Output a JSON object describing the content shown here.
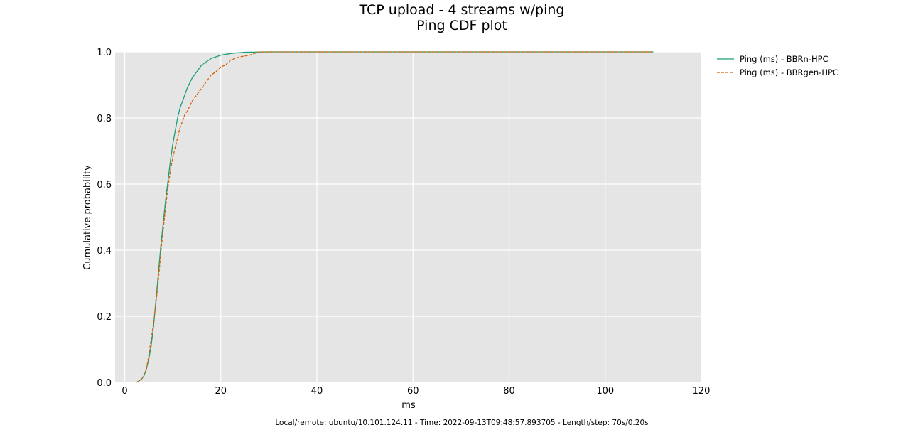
{
  "chart_data": {
    "type": "line",
    "title": "TCP upload - 4 streams w/ping",
    "subtitle": "Ping CDF plot",
    "xlabel": "ms",
    "ylabel": "Cumulative probability",
    "xlim": [
      -2,
      120
    ],
    "ylim": [
      0,
      1.0
    ],
    "xticks": [
      "0",
      "20",
      "40",
      "60",
      "80",
      "100",
      "120"
    ],
    "yticks": [
      "0.0",
      "0.2",
      "0.4",
      "0.6",
      "0.8",
      "1.0"
    ],
    "grid": true,
    "legend_position": "right-outside-top",
    "series": [
      {
        "name": "Ping (ms) - BBRn-HPC",
        "color": "#1b9e77",
        "dash": "solid",
        "points": [
          [
            2.5,
            0
          ],
          [
            3,
            0.005
          ],
          [
            3.5,
            0.01
          ],
          [
            4,
            0.02
          ],
          [
            4.5,
            0.04
          ],
          [
            5,
            0.07
          ],
          [
            5.5,
            0.11
          ],
          [
            6,
            0.17
          ],
          [
            6.5,
            0.25
          ],
          [
            7,
            0.33
          ],
          [
            7.5,
            0.41
          ],
          [
            8,
            0.48
          ],
          [
            8.5,
            0.55
          ],
          [
            9,
            0.61
          ],
          [
            9.5,
            0.67
          ],
          [
            10,
            0.72
          ],
          [
            10.5,
            0.76
          ],
          [
            11,
            0.8
          ],
          [
            11.5,
            0.83
          ],
          [
            12,
            0.85
          ],
          [
            12.5,
            0.87
          ],
          [
            13,
            0.89
          ],
          [
            13.5,
            0.905
          ],
          [
            14,
            0.92
          ],
          [
            15,
            0.94
          ],
          [
            16,
            0.96
          ],
          [
            17,
            0.97
          ],
          [
            18,
            0.98
          ],
          [
            19,
            0.985
          ],
          [
            20,
            0.99
          ],
          [
            22,
            0.995
          ],
          [
            25,
            0.999
          ],
          [
            30,
            1.0
          ],
          [
            60,
            1.0
          ],
          [
            110,
            1.0
          ]
        ]
      },
      {
        "name": "Ping (ms) - BBRgen-HPC",
        "color": "#d95f02",
        "dash": "dashed",
        "points": [
          [
            2.5,
            0
          ],
          [
            3,
            0.005
          ],
          [
            3.5,
            0.01
          ],
          [
            4,
            0.02
          ],
          [
            4.5,
            0.04
          ],
          [
            5,
            0.08
          ],
          [
            5.5,
            0.13
          ],
          [
            6,
            0.18
          ],
          [
            6.5,
            0.24
          ],
          [
            7,
            0.31
          ],
          [
            7.5,
            0.39
          ],
          [
            8,
            0.46
          ],
          [
            8.5,
            0.53
          ],
          [
            9,
            0.59
          ],
          [
            9.5,
            0.64
          ],
          [
            10,
            0.68
          ],
          [
            10.5,
            0.71
          ],
          [
            11,
            0.74
          ],
          [
            11.5,
            0.77
          ],
          [
            12,
            0.79
          ],
          [
            12.5,
            0.81
          ],
          [
            13,
            0.82
          ],
          [
            14,
            0.85
          ],
          [
            15,
            0.87
          ],
          [
            16,
            0.89
          ],
          [
            17,
            0.91
          ],
          [
            18,
            0.93
          ],
          [
            19,
            0.94
          ],
          [
            20,
            0.955
          ],
          [
            21,
            0.96
          ],
          [
            22,
            0.975
          ],
          [
            24,
            0.985
          ],
          [
            26,
            0.99
          ],
          [
            27,
            0.995
          ],
          [
            28,
            1.0
          ],
          [
            60,
            1.0
          ],
          [
            110,
            1.0
          ]
        ]
      }
    ]
  },
  "footer": "Local/remote: ubuntu/10.101.124.11 - Time: 2022-09-13T09:48:57.893705 - Length/step: 70s/0.20s"
}
